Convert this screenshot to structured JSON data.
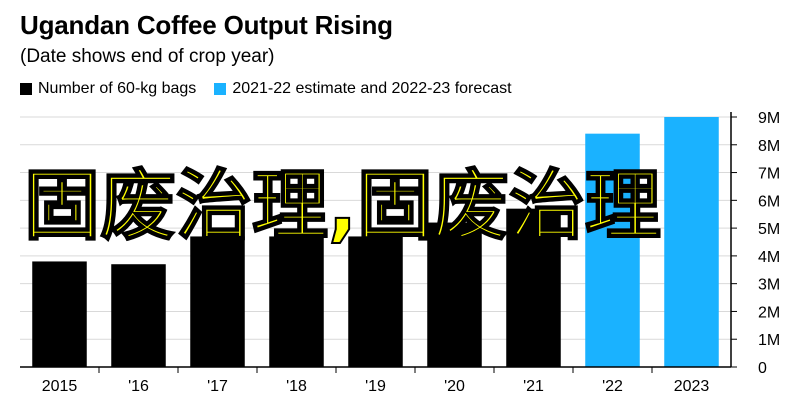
{
  "title": "Ugandan Coffee Output Rising",
  "subtitle": "(Date shows end of crop year)",
  "legend": [
    {
      "label": "Number of 60-kg bags",
      "color": "#000000"
    },
    {
      "label": "2021-22 estimate and 2022-23 forecast",
      "color": "#1ab2ff"
    }
  ],
  "watermark": "固废治理,固废治理",
  "chart_data": {
    "type": "bar",
    "categories": [
      "2015",
      "'16",
      "'17",
      "'18",
      "'19",
      "'20",
      "'21",
      "'22",
      "2023"
    ],
    "series": [
      {
        "name": "Number of 60-kg bags",
        "values": [
          3.8,
          3.7,
          4.7,
          4.7,
          4.7,
          5.2,
          5.7,
          null,
          null
        ],
        "color": "#000000"
      },
      {
        "name": "2021-22 estimate and 2022-23 forecast",
        "values": [
          null,
          null,
          null,
          null,
          null,
          null,
          null,
          8.4,
          9.0
        ],
        "color": "#1ab2ff"
      }
    ],
    "ylim": [
      0,
      9
    ],
    "yticks": [
      0,
      1,
      2,
      3,
      4,
      5,
      6,
      7,
      8,
      9
    ],
    "ytick_labels": [
      "0",
      "1M",
      "2M",
      "3M",
      "4M",
      "5M",
      "6M",
      "7M",
      "8M",
      "9M"
    ],
    "y_axis_side": "right",
    "grid": true
  }
}
